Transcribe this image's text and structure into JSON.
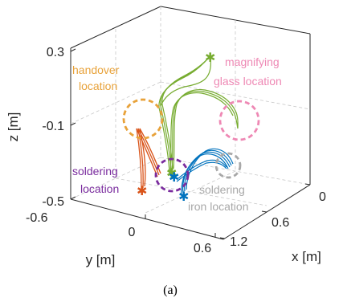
{
  "chart_data": {
    "type": "line",
    "projection": "3d",
    "grid": true,
    "axes": {
      "x": {
        "label": "x [m]",
        "ticks": [
          "0",
          "0.6",
          "1.2"
        ]
      },
      "y": {
        "label": "y [m]",
        "ticks": [
          "-0.6",
          "0",
          "0.6"
        ]
      },
      "z": {
        "label": "z [m]",
        "ticks": [
          "0.3",
          "-0.1",
          "-0.5"
        ]
      }
    },
    "annotations": [
      {
        "lines": [
          "handover",
          "location"
        ],
        "color": "#e8a23a"
      },
      {
        "lines": [
          "magnifying",
          "glass location"
        ],
        "color": "#ee88b4"
      },
      {
        "lines": [
          "soldering",
          "location"
        ],
        "color": "#7a2c9e"
      },
      {
        "lines": [
          "soldering",
          "iron location"
        ],
        "color": "#a8a8a8"
      }
    ],
    "series": [
      {
        "color": "#77ac30",
        "x": [
          0.1,
          0.2,
          0.35,
          0.55,
          0.7,
          0.6,
          0.5
        ],
        "y": [
          0.0,
          0.1,
          0.2,
          0.3,
          0.45,
          0.6,
          0.7
        ],
        "z": [
          -0.35,
          -0.2,
          -0.05,
          0.1,
          0.2,
          0.1,
          -0.05
        ]
      },
      {
        "color": "#0072bd",
        "x": [
          0.2,
          0.4,
          0.6,
          0.8,
          0.95
        ],
        "y": [
          0.2,
          0.25,
          0.3,
          0.35,
          0.4
        ],
        "z": [
          -0.45,
          -0.38,
          -0.3,
          -0.28,
          -0.35
        ]
      },
      {
        "color": "#d95319",
        "x": [
          0.0,
          0.0,
          0.05
        ],
        "y": [
          -0.2,
          -0.15,
          -0.1
        ],
        "z": [
          -0.45,
          -0.25,
          -0.1
        ]
      }
    ],
    "caption": "(a)"
  }
}
